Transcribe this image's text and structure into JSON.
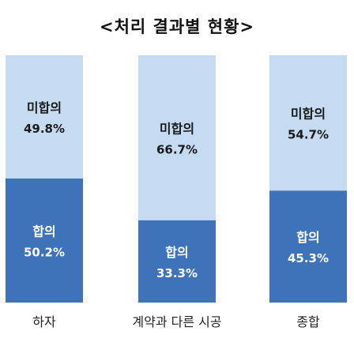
{
  "chart_data": {
    "type": "bar",
    "stacked": true,
    "normalized": true,
    "title": "<처리 결과별 현황>",
    "categories": [
      "하자",
      "계약과 다른 시공",
      "종합"
    ],
    "series": [
      {
        "name": "합의",
        "values": [
          50.2,
          33.3,
          45.3
        ],
        "value_labels": [
          "50.2%",
          "33.3%",
          "45.3%"
        ],
        "color": "#3e73ba",
        "text_color": "#ffffff"
      },
      {
        "name": "미합의",
        "values": [
          49.8,
          66.7,
          54.7
        ],
        "value_labels": [
          "49.8%",
          "66.7%",
          "54.7%"
        ],
        "color": "#c5dbf1",
        "text_color": "#1a1a1a"
      }
    ],
    "ylim": [
      0,
      100
    ],
    "grid": false,
    "legend": "none"
  }
}
